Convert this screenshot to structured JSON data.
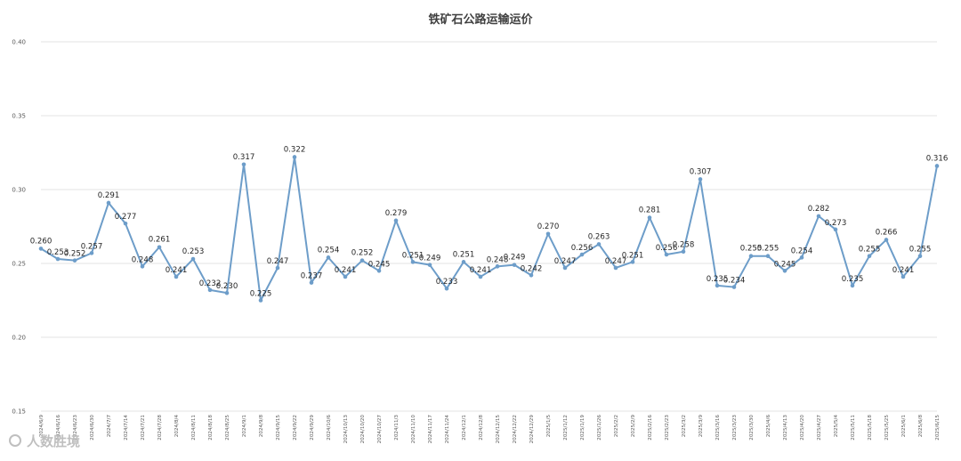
{
  "chart_data": {
    "type": "line",
    "title": "铁矿石公路运输运价",
    "xlabel": "",
    "ylabel": "",
    "ylim": [
      0.15,
      0.4
    ],
    "yticks": [
      "0.15",
      "0.20",
      "0.25",
      "0.30",
      "0.35",
      "0.40"
    ],
    "grid": true,
    "legend": "none",
    "color": "#6d9dc9",
    "categories": [
      "2024/6/9",
      "2024/6/16",
      "2024/6/23",
      "2024/6/30",
      "2024/7/7",
      "2024/7/14",
      "2024/7/21",
      "2024/7/28",
      "2024/8/4",
      "2024/8/11",
      "2024/8/18",
      "2024/8/25",
      "2024/9/1",
      "2024/9/8",
      "2024/9/15",
      "2024/9/22",
      "2024/9/29",
      "2024/10/6",
      "2024/10/13",
      "2024/10/20",
      "2024/10/27",
      "2024/11/3",
      "2024/11/10",
      "2024/11/17",
      "2024/11/24",
      "2024/12/1",
      "2024/12/8",
      "2024/12/15",
      "2024/12/22",
      "2024/12/29",
      "2025/1/5",
      "2025/1/12",
      "2025/1/19",
      "2025/1/26",
      "2025/2/2",
      "2025/2/9",
      "2025/2/16",
      "2025/2/23",
      "2025/3/2",
      "2025/3/9",
      "2025/3/16",
      "2025/3/23",
      "2025/3/30",
      "2025/4/6",
      "2025/4/13",
      "2025/4/20",
      "2025/4/27",
      "2025/5/4",
      "2025/5/11",
      "2025/5/18",
      "2025/5/25",
      "2025/6/1",
      "2025/6/8",
      "2025/6/15"
    ],
    "values": [
      0.26,
      0.253,
      0.252,
      0.257,
      0.291,
      0.277,
      0.248,
      0.261,
      0.241,
      0.253,
      0.232,
      0.23,
      0.317,
      0.225,
      0.247,
      0.322,
      0.237,
      0.254,
      0.241,
      0.252,
      0.245,
      0.279,
      0.251,
      0.249,
      0.233,
      0.251,
      0.241,
      0.248,
      0.249,
      0.242,
      0.27,
      0.247,
      0.256,
      0.263,
      0.247,
      0.251,
      0.281,
      0.256,
      0.258,
      0.307,
      0.235,
      0.234,
      0.255,
      0.255,
      0.245,
      0.254,
      0.282,
      0.273,
      0.235,
      0.255,
      0.266,
      0.241,
      0.255,
      0.316
    ],
    "data_labels": [
      "0.260",
      "0.253",
      "0.252",
      "0.257",
      "0.291",
      "0.277",
      "0.248",
      "0.261",
      "0.241",
      "0.253",
      "0.232",
      "0.230",
      "0.317",
      "0.225",
      "0.247",
      "0.322",
      "0.237",
      "0.254",
      "0.241",
      "0.252",
      "0.245",
      "0.279",
      "0.251",
      "0.249",
      "0.233",
      "0.251",
      "0.241",
      "0.248",
      "0.249",
      "0.242",
      "0.270",
      "0.247",
      "0.256",
      "0.263",
      "0.247",
      "0.251",
      "0.281",
      "0.256",
      "0.258",
      "0.307",
      "0.235",
      "0.234",
      "0.255",
      "0.255",
      "0.245",
      "0.254",
      "0.282",
      "0.273",
      "0.235",
      "0.255",
      "0.266",
      "0.241",
      "0.255",
      "0.316"
    ]
  },
  "watermark": "人数胜境"
}
